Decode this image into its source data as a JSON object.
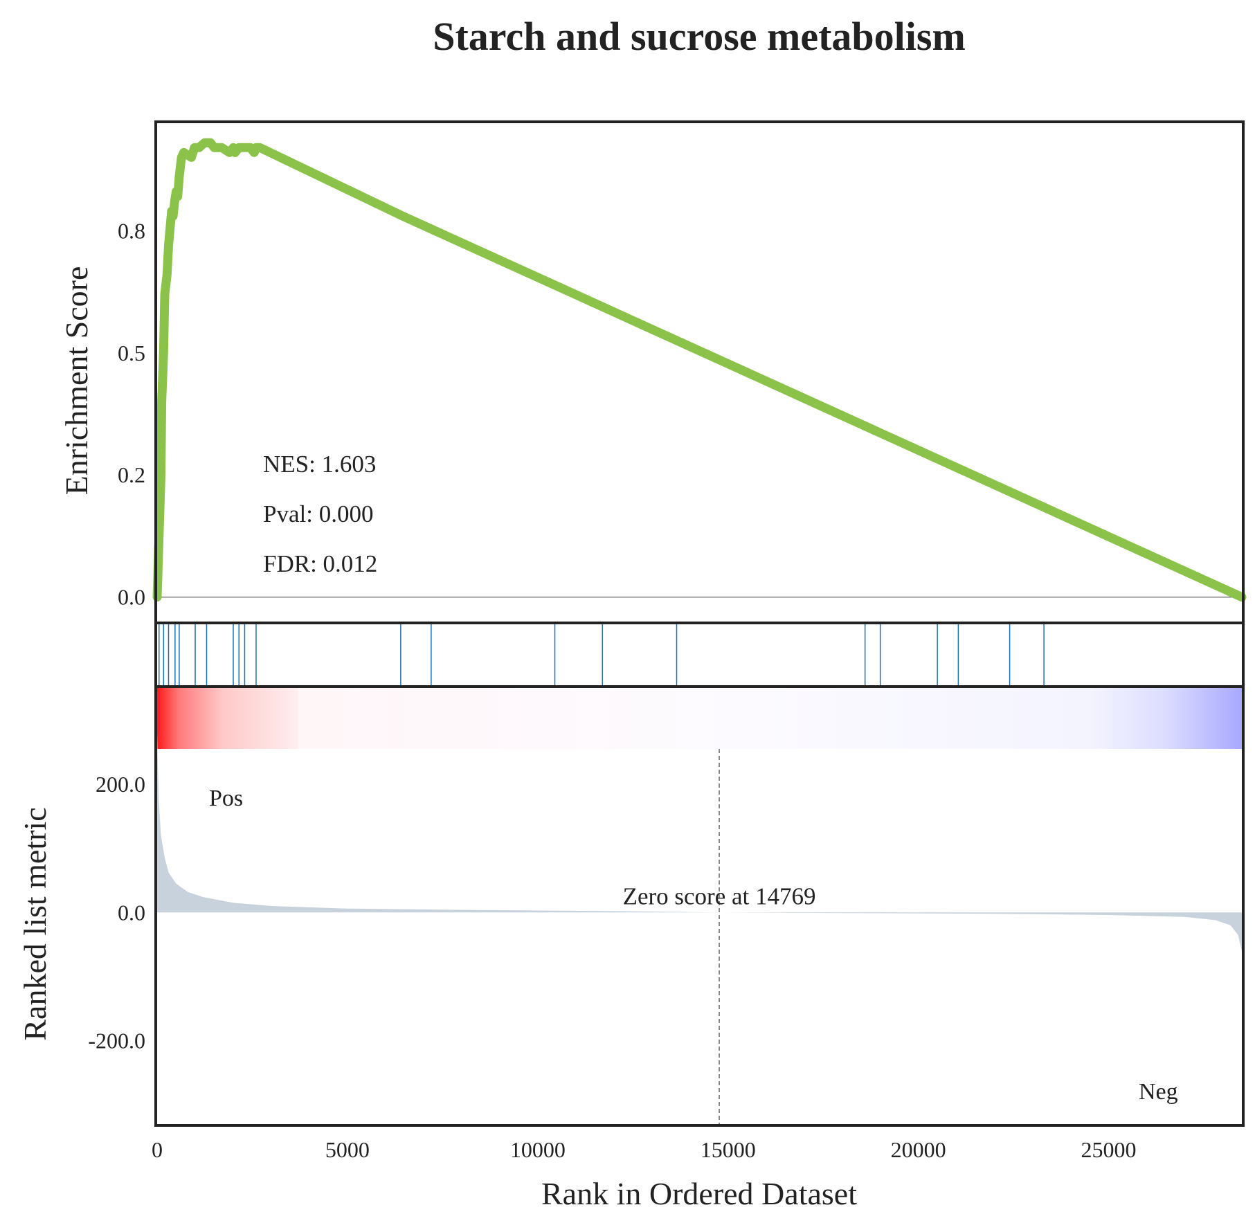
{
  "chart_data": {
    "type": "line",
    "title": "Starch and sucrose metabolism",
    "xlabel": "Rank in Ordered Dataset",
    "xlim": [
      0,
      28500
    ],
    "x_ticks": [
      0,
      5000,
      10000,
      15000,
      20000,
      25000
    ],
    "enrichment": {
      "ylabel": "Enrichment Score",
      "ylim": [
        -0.05,
        0.97
      ],
      "y_ticks": [
        0.0,
        0.25,
        0.5,
        0.75
      ],
      "y_tick_labels": [
        "0.0",
        "0.2",
        "0.5",
        "0.8"
      ],
      "color": "#8bc34a",
      "zero_line_color": "#808080",
      "x": [
        0,
        100,
        120,
        170,
        200,
        260,
        300,
        380,
        420,
        460,
        500,
        540,
        580,
        640,
        700,
        900,
        980,
        1100,
        1250,
        1350,
        1400,
        1500,
        1700,
        1900,
        2000,
        2050,
        2150,
        2300,
        2450,
        2550,
        2600,
        2700,
        6450,
        28500
      ],
      "y": [
        0.0,
        0.25,
        0.4,
        0.5,
        0.62,
        0.66,
        0.72,
        0.79,
        0.78,
        0.81,
        0.83,
        0.82,
        0.86,
        0.9,
        0.91,
        0.9,
        0.92,
        0.92,
        0.93,
        0.93,
        0.93,
        0.92,
        0.92,
        0.91,
        0.92,
        0.91,
        0.92,
        0.92,
        0.92,
        0.91,
        0.92,
        0.92,
        0.78,
        0.0
      ],
      "annotations": {
        "nes": "NES: 1.603",
        "pval": "Pval: 0.000",
        "fdr": "FDR: 0.012"
      }
    },
    "hits": {
      "color": "#1f6fb4",
      "positions": [
        50,
        170,
        300,
        470,
        580,
        1000,
        1300,
        2000,
        2150,
        2300,
        2600,
        6400,
        7200,
        10450,
        11700,
        13650,
        18600,
        19000,
        20500,
        21050,
        22400,
        23300
      ]
    },
    "ranked_metric": {
      "ylabel": "Ranked list metric",
      "ylim": [
        -330,
        350
      ],
      "y_ticks": [
        -200,
        0,
        200
      ],
      "y_tick_labels": [
        "-200.0",
        "0.0",
        "200.0"
      ],
      "fill_color": "#c8d2dc",
      "x": [
        0,
        20,
        50,
        100,
        200,
        300,
        500,
        800,
        1200,
        2000,
        3000,
        5000,
        8000,
        12000,
        14769,
        18000,
        22000,
        25000,
        27000,
        27800,
        28200,
        28400,
        28500
      ],
      "y": [
        280,
        230,
        170,
        120,
        85,
        62,
        45,
        32,
        24,
        15,
        10,
        6,
        4,
        2,
        0,
        -1,
        -2,
        -4,
        -7,
        -12,
        -20,
        -35,
        -60
      ],
      "zero_score_rank": 14769,
      "zero_score_label": "Zero score at 14769",
      "pos_label": "Pos",
      "neg_label": "Neg",
      "pos_color": "#ff0000",
      "neg_color": "#0000ff"
    }
  }
}
